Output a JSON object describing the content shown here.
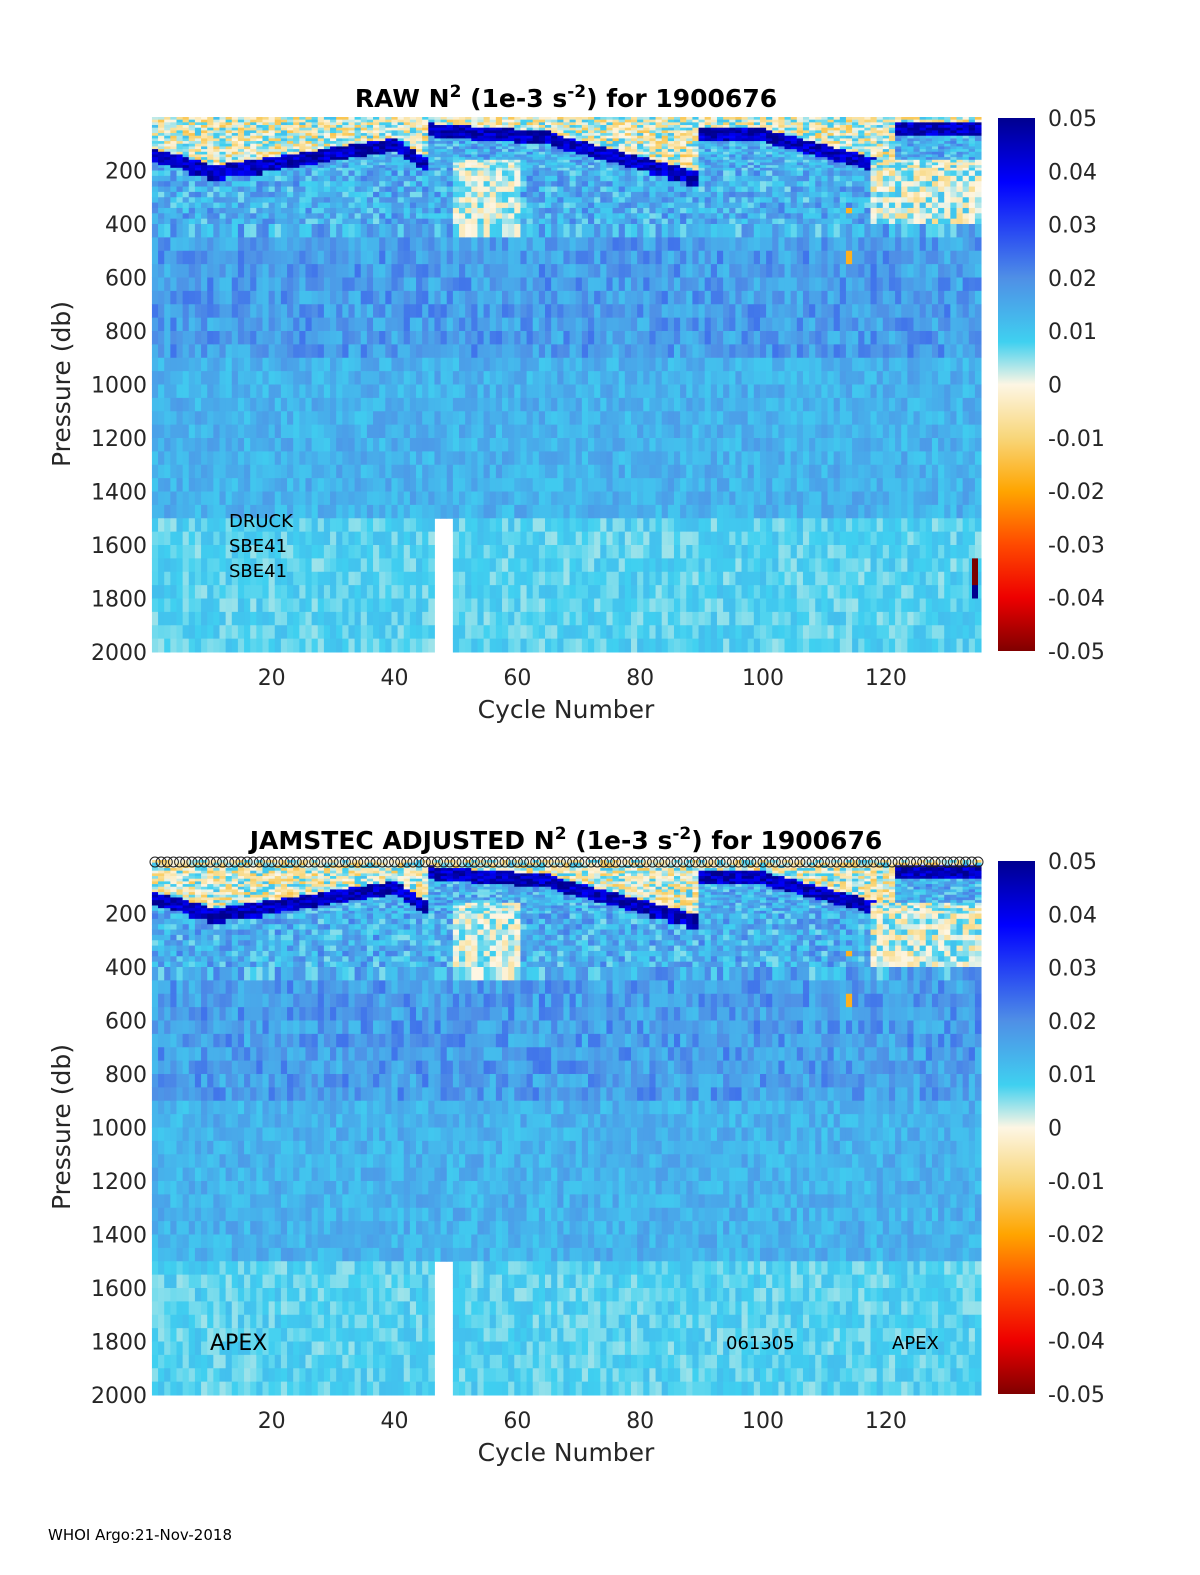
{
  "footer": "WHOI Argo:21-Nov-2018",
  "colorbar": {
    "ticks": [
      "0.05",
      "0.04",
      "0.03",
      "0.02",
      "0.01",
      "0",
      "-0.01",
      "-0.02",
      "-0.03",
      "-0.04",
      "-0.05"
    ],
    "range": [
      -0.05,
      0.05
    ]
  },
  "chart_data": [
    {
      "type": "heatmap",
      "title_parts": [
        "RAW N",
        "2",
        " (1e-3 s",
        "-2",
        ") for 1900676"
      ],
      "xlabel": "Cycle Number",
      "ylabel": "Pressure (db)",
      "x_ticks": [
        "20",
        "40",
        "60",
        "80",
        "100",
        "120"
      ],
      "y_ticks": [
        "200",
        "400",
        "600",
        "800",
        "1000",
        "1200",
        "1400",
        "1600",
        "1800",
        "2000"
      ],
      "xlim": [
        1,
        135
      ],
      "ylim": [
        0,
        2000
      ],
      "annotations": [
        "DRUCK",
        "SBE41",
        "SBE41"
      ],
      "surface_markers": false,
      "value_range": [
        -0.05,
        0.05
      ]
    },
    {
      "type": "heatmap",
      "title_parts": [
        "JAMSTEC  ADJUSTED N",
        "2",
        " (1e-3 s",
        "-2",
        ") for 1900676"
      ],
      "xlabel": "Cycle Number",
      "ylabel": "Pressure (db)",
      "x_ticks": [
        "20",
        "40",
        "60",
        "80",
        "100",
        "120"
      ],
      "y_ticks": [
        "200",
        "400",
        "600",
        "800",
        "1000",
        "1200",
        "1400",
        "1600",
        "1800",
        "2000"
      ],
      "xlim": [
        1,
        135
      ],
      "ylim": [
        0,
        2000
      ],
      "annotations": [
        "APEX",
        "061305",
        "APEX"
      ],
      "surface_markers": true,
      "value_range": [
        -0.05,
        0.05
      ]
    }
  ]
}
